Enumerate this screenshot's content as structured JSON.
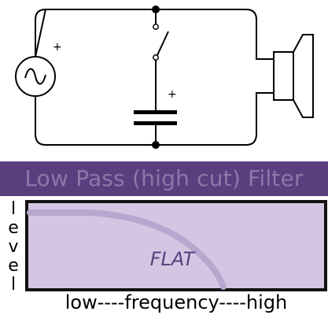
{
  "circuit": {
    "source_plus": "+",
    "capacitor_plus": "+",
    "components": [
      "ac-source",
      "switch",
      "capacitor",
      "speaker"
    ]
  },
  "title": "Low Pass (high cut) Filter",
  "axes": {
    "y_label_letters": [
      "l",
      "e",
      "v",
      "e",
      "l"
    ],
    "x_label": "low----frequency----high"
  },
  "graph": {
    "center_label": "FLAT",
    "colors": {
      "background": "#d4c6e3",
      "curve": "#b8a6cf",
      "frame": "#111111",
      "label": "#5a3f7f"
    }
  },
  "colors": {
    "title_background": "#5a3f7f",
    "title_text": "#8c78a8"
  }
}
